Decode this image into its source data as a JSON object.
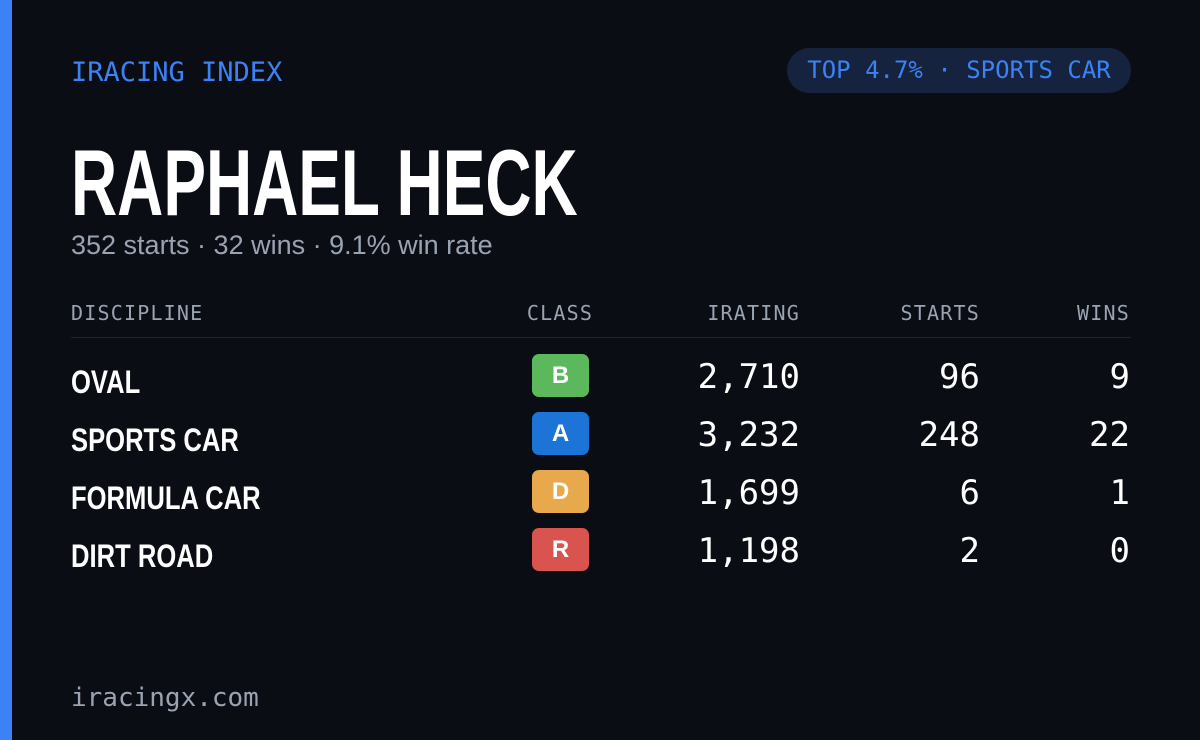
{
  "header": {
    "title": "IRACING INDEX",
    "badge": "TOP 4.7% · SPORTS CAR"
  },
  "player": {
    "name": "RAPHAEL HECK",
    "summary": "352 starts · 32 wins · 9.1% win rate"
  },
  "table": {
    "columns": [
      "DISCIPLINE",
      "CLASS",
      "IRATING",
      "STARTS",
      "WINS"
    ],
    "rows": [
      {
        "discipline": "OVAL",
        "class": "B",
        "class_color": "#5cb85c",
        "irating": "2,710",
        "starts": "96",
        "wins": "9"
      },
      {
        "discipline": "SPORTS CAR",
        "class": "A",
        "class_color": "#1b74d6",
        "irating": "3,232",
        "starts": "248",
        "wins": "22"
      },
      {
        "discipline": "FORMULA CAR",
        "class": "D",
        "class_color": "#e8a94c",
        "irating": "1,699",
        "starts": "6",
        "wins": "1"
      },
      {
        "discipline": "DIRT ROAD",
        "class": "R",
        "class_color": "#d9534f",
        "irating": "1,198",
        "starts": "2",
        "wins": "0"
      }
    ]
  },
  "footer": "iracingx.com"
}
